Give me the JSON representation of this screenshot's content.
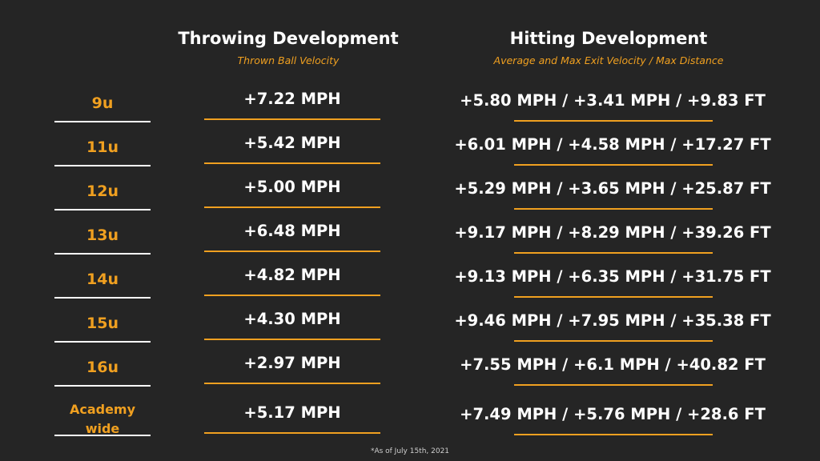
{
  "throwing": {
    "title": "Throwing Development",
    "subtitle": "Thrown Ball Velocity"
  },
  "hitting": {
    "title": "Hitting Development",
    "subtitle": "Average and Max Exit Velocity / Max Distance"
  },
  "rows": [
    {
      "age": "9u",
      "throw": "+7.22 MPH",
      "hit": "+5.80 MPH / +3.41 MPH / +9.83 FT"
    },
    {
      "age": "11u",
      "throw": "+5.42 MPH",
      "hit": "+6.01 MPH / +4.58 MPH / +17.27 FT"
    },
    {
      "age": "12u",
      "throw": "+5.00 MPH",
      "hit": "+5.29 MPH / +3.65 MPH / +25.87 FT"
    },
    {
      "age": "13u",
      "throw": "+6.48 MPH",
      "hit": "+9.17 MPH / +8.29 MPH / +39.26 FT"
    },
    {
      "age": "14u",
      "throw": "+4.82 MPH",
      "hit": "+9.13 MPH / +6.35 MPH / +31.75 FT"
    },
    {
      "age": "15u",
      "throw": "+4.30 MPH",
      "hit": "+9.46 MPH / +7.95 MPH / +35.38 FT"
    },
    {
      "age": "16u",
      "throw": "+2.97 MPH",
      "hit": "+7.55 MPH / +6.1 MPH / +40.82 FT"
    },
    {
      "age": "Academy wide",
      "throw": "+5.17 MPH",
      "hit": "+7.49 MPH / +5.76 MPH / +28.6 FT"
    }
  ],
  "footnote": "*As of July 15th, 2021",
  "colors": {
    "background": "#252525",
    "accent": "#f0a020",
    "text": "#ffffff"
  }
}
